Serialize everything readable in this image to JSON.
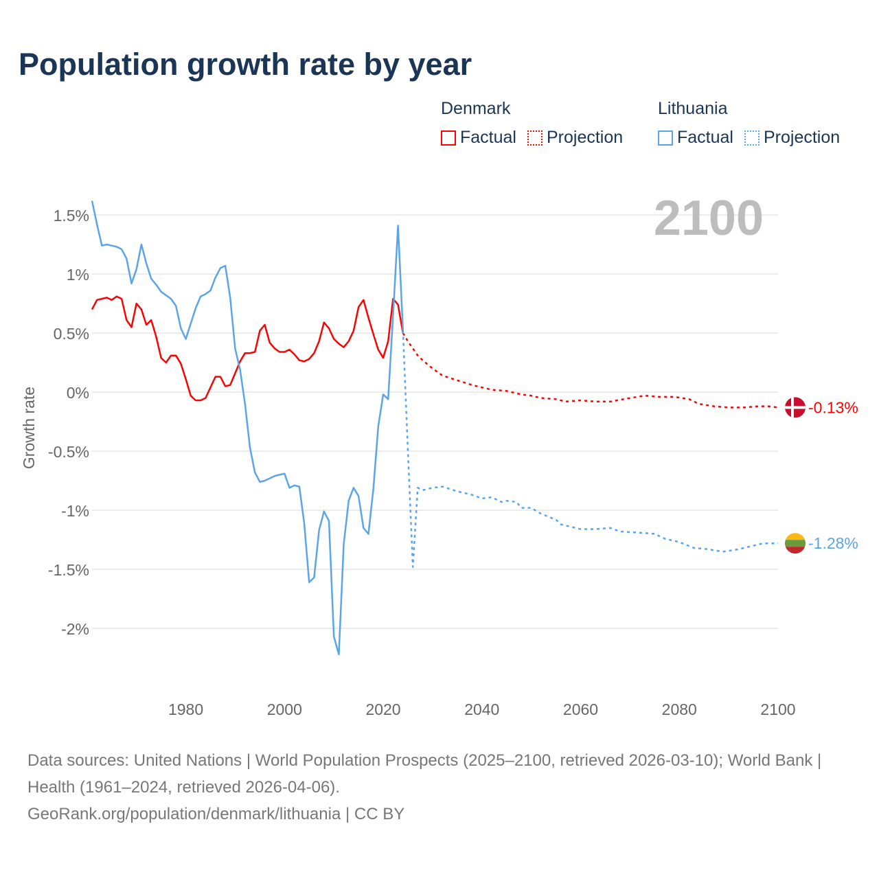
{
  "title": "Population growth rate by year",
  "legend": {
    "groups": [
      {
        "country": "Denmark",
        "factual": "Factual",
        "projection": "Projection",
        "color": "#ff0000"
      },
      {
        "country": "Lithuania",
        "factual": "Factual",
        "projection": "Projection",
        "color": "#5aa5ea"
      }
    ]
  },
  "year_label": "2100",
  "end_labels": {
    "denmark": "-0.13%",
    "lithuania": "-1.28%"
  },
  "footer": {
    "sources": "Data sources: United Nations | World Population Prospects (2025–2100, retrieved 2026-03-10); World Bank | Health (1961–2024, retrieved 2026-04-06).",
    "credit": "GeoRank.org/population/denmark/lithuania | CC BY"
  },
  "chart_data": {
    "type": "line",
    "title": "Population growth rate by year",
    "xlabel": "",
    "ylabel": "Growth rate",
    "xlim": [
      1961,
      2100
    ],
    "ylim": [
      -2.5,
      1.65
    ],
    "x_ticks": [
      1980,
      2000,
      2020,
      2040,
      2060,
      2080,
      2100
    ],
    "x_tick_labels": [
      "1980",
      "2000",
      "2020",
      "2040",
      "2060",
      "2080",
      "2100"
    ],
    "y_ticks": [
      1.5,
      1,
      0.5,
      0,
      -0.5,
      -1,
      -1.5,
      -2
    ],
    "y_tick_labels": [
      "1.5%",
      "1%",
      "0.5%",
      "0%",
      "-0.5%",
      "-1%",
      "-1.5%",
      "-2%"
    ],
    "grid": true,
    "legend_position": "top-right",
    "series": [
      {
        "name": "Denmark Factual",
        "color": "#ff0000",
        "style": "solid",
        "x": [
          1961,
          1962,
          1963,
          1964,
          1965,
          1966,
          1967,
          1968,
          1969,
          1970,
          1971,
          1972,
          1973,
          1974,
          1975,
          1976,
          1977,
          1978,
          1979,
          1980,
          1981,
          1982,
          1983,
          1984,
          1985,
          1986,
          1987,
          1988,
          1989,
          1990,
          1991,
          1992,
          1993,
          1994,
          1995,
          1996,
          1997,
          1998,
          1999,
          2000,
          2001,
          2002,
          2003,
          2004,
          2005,
          2006,
          2007,
          2008,
          2009,
          2010,
          2011,
          2012,
          2013,
          2014,
          2015,
          2016,
          2017,
          2018,
          2019,
          2020,
          2021,
          2022,
          2023,
          2024
        ],
        "y": [
          0.7,
          0.78,
          0.79,
          0.8,
          0.78,
          0.81,
          0.79,
          0.61,
          0.55,
          0.75,
          0.7,
          0.57,
          0.61,
          0.47,
          0.29,
          0.25,
          0.31,
          0.31,
          0.24,
          0.11,
          -0.03,
          -0.07,
          -0.07,
          -0.05,
          0.04,
          0.13,
          0.13,
          0.05,
          0.06,
          0.16,
          0.26,
          0.33,
          0.33,
          0.34,
          0.52,
          0.57,
          0.42,
          0.37,
          0.34,
          0.34,
          0.36,
          0.32,
          0.27,
          0.26,
          0.28,
          0.33,
          0.43,
          0.59,
          0.54,
          0.45,
          0.41,
          0.38,
          0.43,
          0.52,
          0.72,
          0.78,
          0.63,
          0.49,
          0.36,
          0.29,
          0.43,
          0.79,
          0.74,
          0.5
        ]
      },
      {
        "name": "Denmark Projection",
        "color": "#ff0000",
        "style": "dotted",
        "x": [
          2024,
          2025,
          2026,
          2027,
          2028,
          2030,
          2032,
          2035,
          2038,
          2040,
          2042,
          2045,
          2048,
          2050,
          2052,
          2055,
          2057,
          2060,
          2063,
          2066,
          2070,
          2073,
          2076,
          2079,
          2082,
          2084,
          2087,
          2090,
          2093,
          2096,
          2098,
          2100
        ],
        "y": [
          0.5,
          0.43,
          0.37,
          0.31,
          0.27,
          0.2,
          0.14,
          0.1,
          0.06,
          0.04,
          0.02,
          0.01,
          -0.02,
          -0.03,
          -0.05,
          -0.06,
          -0.08,
          -0.07,
          -0.08,
          -0.08,
          -0.05,
          -0.03,
          -0.04,
          -0.04,
          -0.06,
          -0.1,
          -0.12,
          -0.13,
          -0.13,
          -0.12,
          -0.12,
          -0.13
        ]
      },
      {
        "name": "Lithuania Factual",
        "color": "#5aa5ea",
        "style": "solid",
        "x": [
          1961,
          1962,
          1963,
          1964,
          1965,
          1966,
          1967,
          1968,
          1969,
          1970,
          1971,
          1972,
          1973,
          1974,
          1975,
          1976,
          1977,
          1978,
          1979,
          1980,
          1981,
          1982,
          1983,
          1984,
          1985,
          1986,
          1987,
          1988,
          1989,
          1990,
          1991,
          1992,
          1993,
          1994,
          1995,
          1996,
          1997,
          1998,
          1999,
          2000,
          2001,
          2002,
          2003,
          2004,
          2005,
          2006,
          2007,
          2008,
          2009,
          2010,
          2011,
          2012,
          2013,
          2014,
          2015,
          2016,
          2017,
          2018,
          2019,
          2020,
          2021,
          2022,
          2023,
          2024
        ],
        "y": [
          1.62,
          1.42,
          1.24,
          1.25,
          1.24,
          1.23,
          1.21,
          1.13,
          0.92,
          1.04,
          1.25,
          1.09,
          0.96,
          0.91,
          0.85,
          0.82,
          0.79,
          0.73,
          0.54,
          0.45,
          0.58,
          0.71,
          0.81,
          0.83,
          0.86,
          0.97,
          1.05,
          1.07,
          0.8,
          0.37,
          0.19,
          -0.1,
          -0.47,
          -0.68,
          -0.76,
          -0.75,
          -0.73,
          -0.71,
          -0.7,
          -0.69,
          -0.81,
          -0.79,
          -0.8,
          -1.11,
          -1.61,
          -1.57,
          -1.17,
          -1.01,
          -1.09,
          -2.07,
          -2.22,
          -1.29,
          -0.92,
          -0.81,
          -0.88,
          -1.15,
          -1.2,
          -0.82,
          -0.29,
          -0.02,
          -0.06,
          0.65,
          1.41,
          0.52
        ]
      },
      {
        "name": "Lithuania Projection",
        "color": "#5aa5ea",
        "style": "dotted",
        "x": [
          2024,
          2025,
          2026,
          2027,
          2028,
          2030,
          2032,
          2035,
          2038,
          2040,
          2042,
          2044,
          2045,
          2047,
          2048,
          2050,
          2052,
          2055,
          2056,
          2060,
          2063,
          2066,
          2068,
          2072,
          2075,
          2077,
          2080,
          2083,
          2086,
          2087,
          2089,
          2092,
          2095,
          2097,
          2100
        ],
        "y": [
          0.52,
          -0.5,
          -1.48,
          -0.81,
          -0.83,
          -0.81,
          -0.8,
          -0.84,
          -0.87,
          -0.9,
          -0.89,
          -0.93,
          -0.92,
          -0.93,
          -0.98,
          -0.98,
          -1.03,
          -1.08,
          -1.12,
          -1.16,
          -1.16,
          -1.15,
          -1.18,
          -1.19,
          -1.2,
          -1.24,
          -1.27,
          -1.32,
          -1.33,
          -1.34,
          -1.35,
          -1.33,
          -1.3,
          -1.28,
          -1.28
        ]
      }
    ]
  }
}
